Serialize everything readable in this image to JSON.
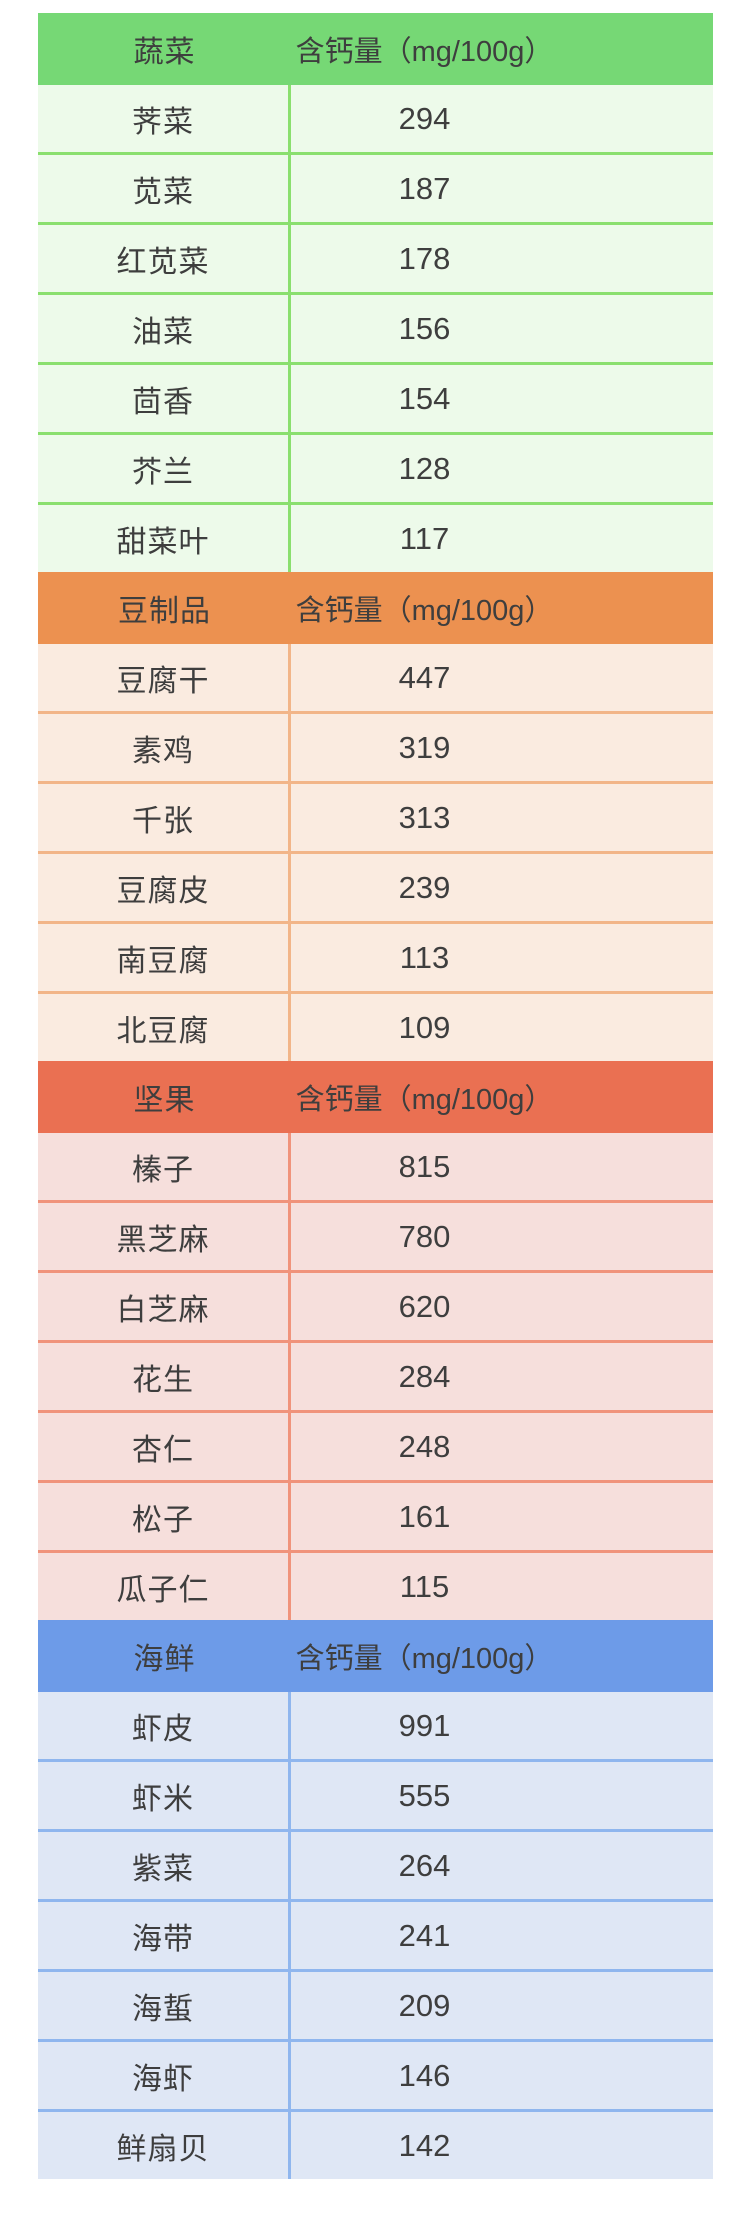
{
  "page": {
    "background": "#ffffff",
    "text_color": "#3e3e3e"
  },
  "table": {
    "value_header": "含钙量（mg/100g）"
  },
  "chart_data": [
    {
      "type": "table",
      "category": "蔬菜",
      "value_label": "含钙量（mg/100g）",
      "theme": {
        "header_bg": "#76d875",
        "row_bg": "#edfaea",
        "divider": "#8adf6e"
      },
      "columns": [
        "蔬菜",
        "含钙量（mg/100g）"
      ],
      "rows": [
        [
          "荠菜",
          294
        ],
        [
          "苋菜",
          187
        ],
        [
          "红苋菜",
          178
        ],
        [
          "油菜",
          156
        ],
        [
          "茴香",
          154
        ],
        [
          "芥兰",
          128
        ],
        [
          "甜菜叶",
          117
        ]
      ]
    },
    {
      "type": "table",
      "category": "豆制品",
      "value_label": "含钙量（mg/100g）",
      "theme": {
        "header_bg": "#ec9150",
        "row_bg": "#faebe0",
        "divider": "#f2b588"
      },
      "columns": [
        "豆制品",
        "含钙量（mg/100g）"
      ],
      "rows": [
        [
          "豆腐干",
          447
        ],
        [
          "素鸡",
          319
        ],
        [
          "千张",
          313
        ],
        [
          "豆腐皮",
          239
        ],
        [
          "南豆腐",
          113
        ],
        [
          "北豆腐",
          109
        ]
      ]
    },
    {
      "type": "table",
      "category": "坚果",
      "value_label": "含钙量（mg/100g）",
      "theme": {
        "header_bg": "#ea7052",
        "row_bg": "#f6dfdc",
        "divider": "#f0937b"
      },
      "columns": [
        "坚果",
        "含钙量（mg/100g）"
      ],
      "rows": [
        [
          "榛子",
          815
        ],
        [
          "黑芝麻",
          780
        ],
        [
          "白芝麻",
          620
        ],
        [
          "花生",
          284
        ],
        [
          "杏仁",
          248
        ],
        [
          "松子",
          161
        ],
        [
          "瓜子仁",
          115
        ]
      ]
    },
    {
      "type": "table",
      "category": "海鲜",
      "value_label": "含钙量（mg/100g）",
      "theme": {
        "header_bg": "#6d9be8",
        "row_bg": "#dfe7f5",
        "divider": "#8fb6ee"
      },
      "columns": [
        "海鲜",
        "含钙量（mg/100g）"
      ],
      "rows": [
        [
          "虾皮",
          991
        ],
        [
          "虾米",
          555
        ],
        [
          "紫菜",
          264
        ],
        [
          "海带",
          241
        ],
        [
          "海蜇",
          209
        ],
        [
          "海虾",
          146
        ],
        [
          "鲜扇贝",
          142
        ]
      ]
    }
  ]
}
